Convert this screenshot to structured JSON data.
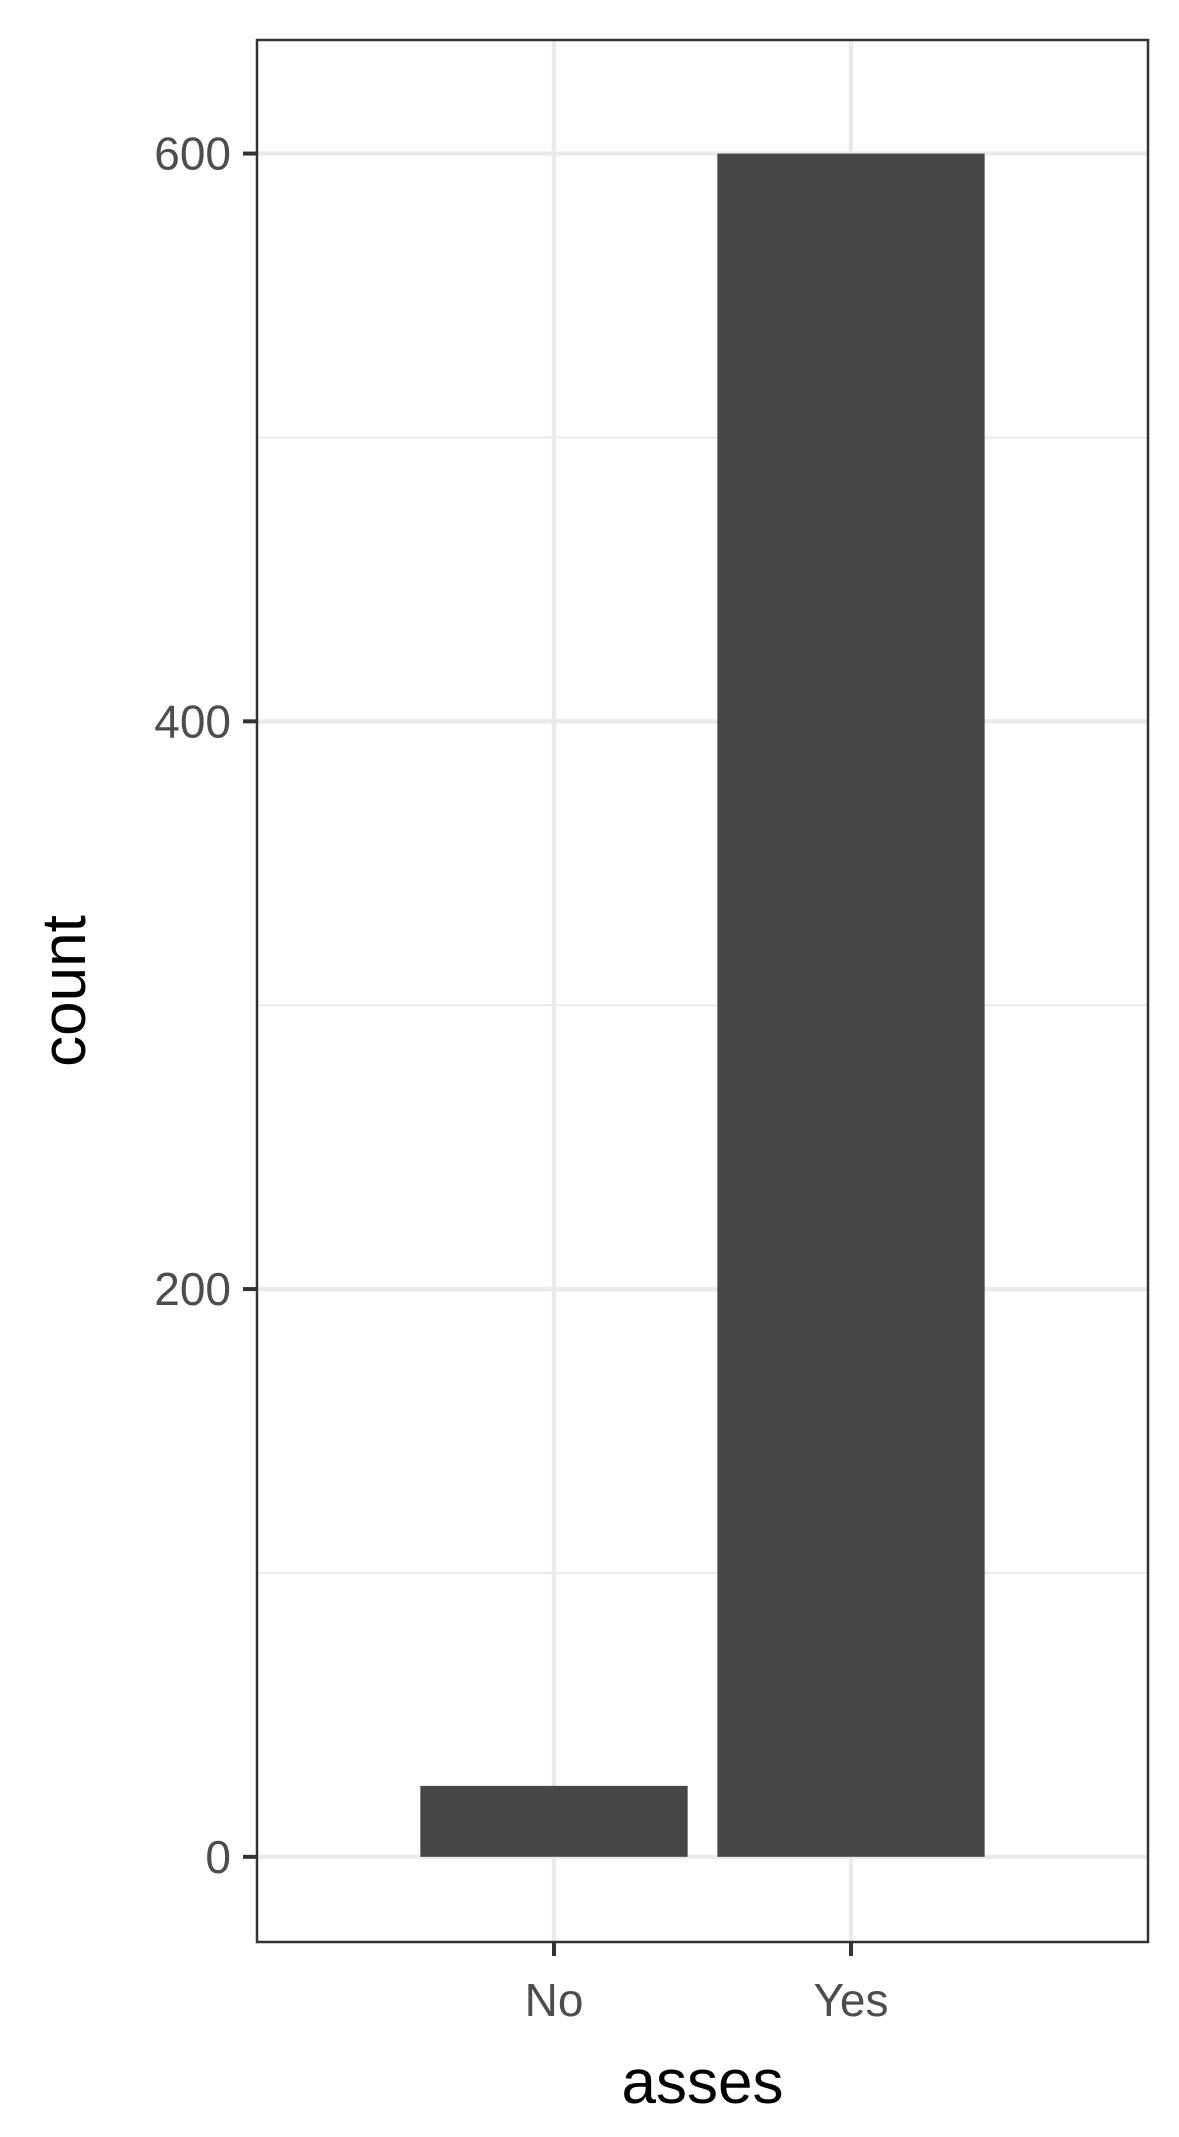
{
  "chart_data": {
    "type": "bar",
    "categories": [
      "No",
      "Yes"
    ],
    "values": [
      25,
      600
    ],
    "xlabel": "asses",
    "ylabel": "count",
    "ylim": [
      -30,
      640
    ],
    "yticks": [
      0,
      200,
      400,
      600
    ],
    "ytick_labels": [
      "0",
      "200",
      "400",
      "600"
    ],
    "minor_yticks": [
      100,
      300,
      500
    ],
    "grid": true,
    "legend": "none",
    "bar_color": "#474747",
    "grid_color": "#ebebeb",
    "panel_border_color": "#333333"
  }
}
